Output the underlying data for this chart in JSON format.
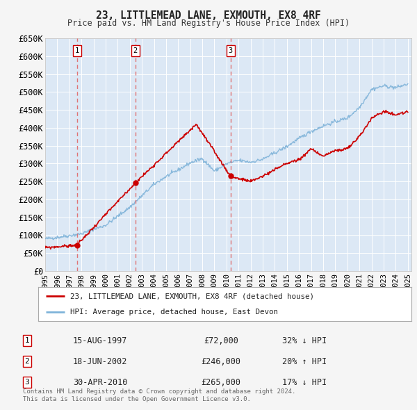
{
  "title": "23, LITTLEMEAD LANE, EXMOUTH, EX8 4RF",
  "subtitle": "Price paid vs. HM Land Registry's House Price Index (HPI)",
  "legend_line1": "23, LITTLEMEAD LANE, EXMOUTH, EX8 4RF (detached house)",
  "legend_line2": "HPI: Average price, detached house, East Devon",
  "footer1": "Contains HM Land Registry data © Crown copyright and database right 2024.",
  "footer2": "This data is licensed under the Open Government Licence v3.0.",
  "sales": [
    {
      "label": "1",
      "date": "15-AUG-1997",
      "price": "£72,000",
      "hpi": "32% ↓ HPI",
      "year": 1997.62
    },
    {
      "label": "2",
      "date": "18-JUN-2002",
      "price": "£246,000",
      "hpi": "20% ↑ HPI",
      "year": 2002.46
    },
    {
      "label": "3",
      "date": "30-APR-2010",
      "price": "£265,000",
      "hpi": "17% ↓ HPI",
      "year": 2010.33
    }
  ],
  "sale_values": [
    72000,
    246000,
    265000
  ],
  "bg_color": "#f5f5f5",
  "plot_bg": "#dce8f5",
  "red_line_color": "#cc0000",
  "blue_line_color": "#7fb3d9",
  "grid_color": "#ffffff",
  "dashed_color": "#e06060",
  "xlim": [
    1995.0,
    2025.3
  ],
  "ylim": [
    0,
    650000
  ],
  "yticks": [
    0,
    50000,
    100000,
    150000,
    200000,
    250000,
    300000,
    350000,
    400000,
    450000,
    500000,
    550000,
    600000,
    650000
  ],
  "ytick_labels": [
    "£0",
    "£50K",
    "£100K",
    "£150K",
    "£200K",
    "£250K",
    "£300K",
    "£350K",
    "£400K",
    "£450K",
    "£500K",
    "£550K",
    "£600K",
    "£650K"
  ],
  "xticks": [
    1995,
    1996,
    1997,
    1998,
    1999,
    2000,
    2001,
    2002,
    2003,
    2004,
    2005,
    2006,
    2007,
    2008,
    2009,
    2010,
    2011,
    2012,
    2013,
    2014,
    2015,
    2016,
    2017,
    2018,
    2019,
    2020,
    2021,
    2022,
    2023,
    2024,
    2025
  ]
}
